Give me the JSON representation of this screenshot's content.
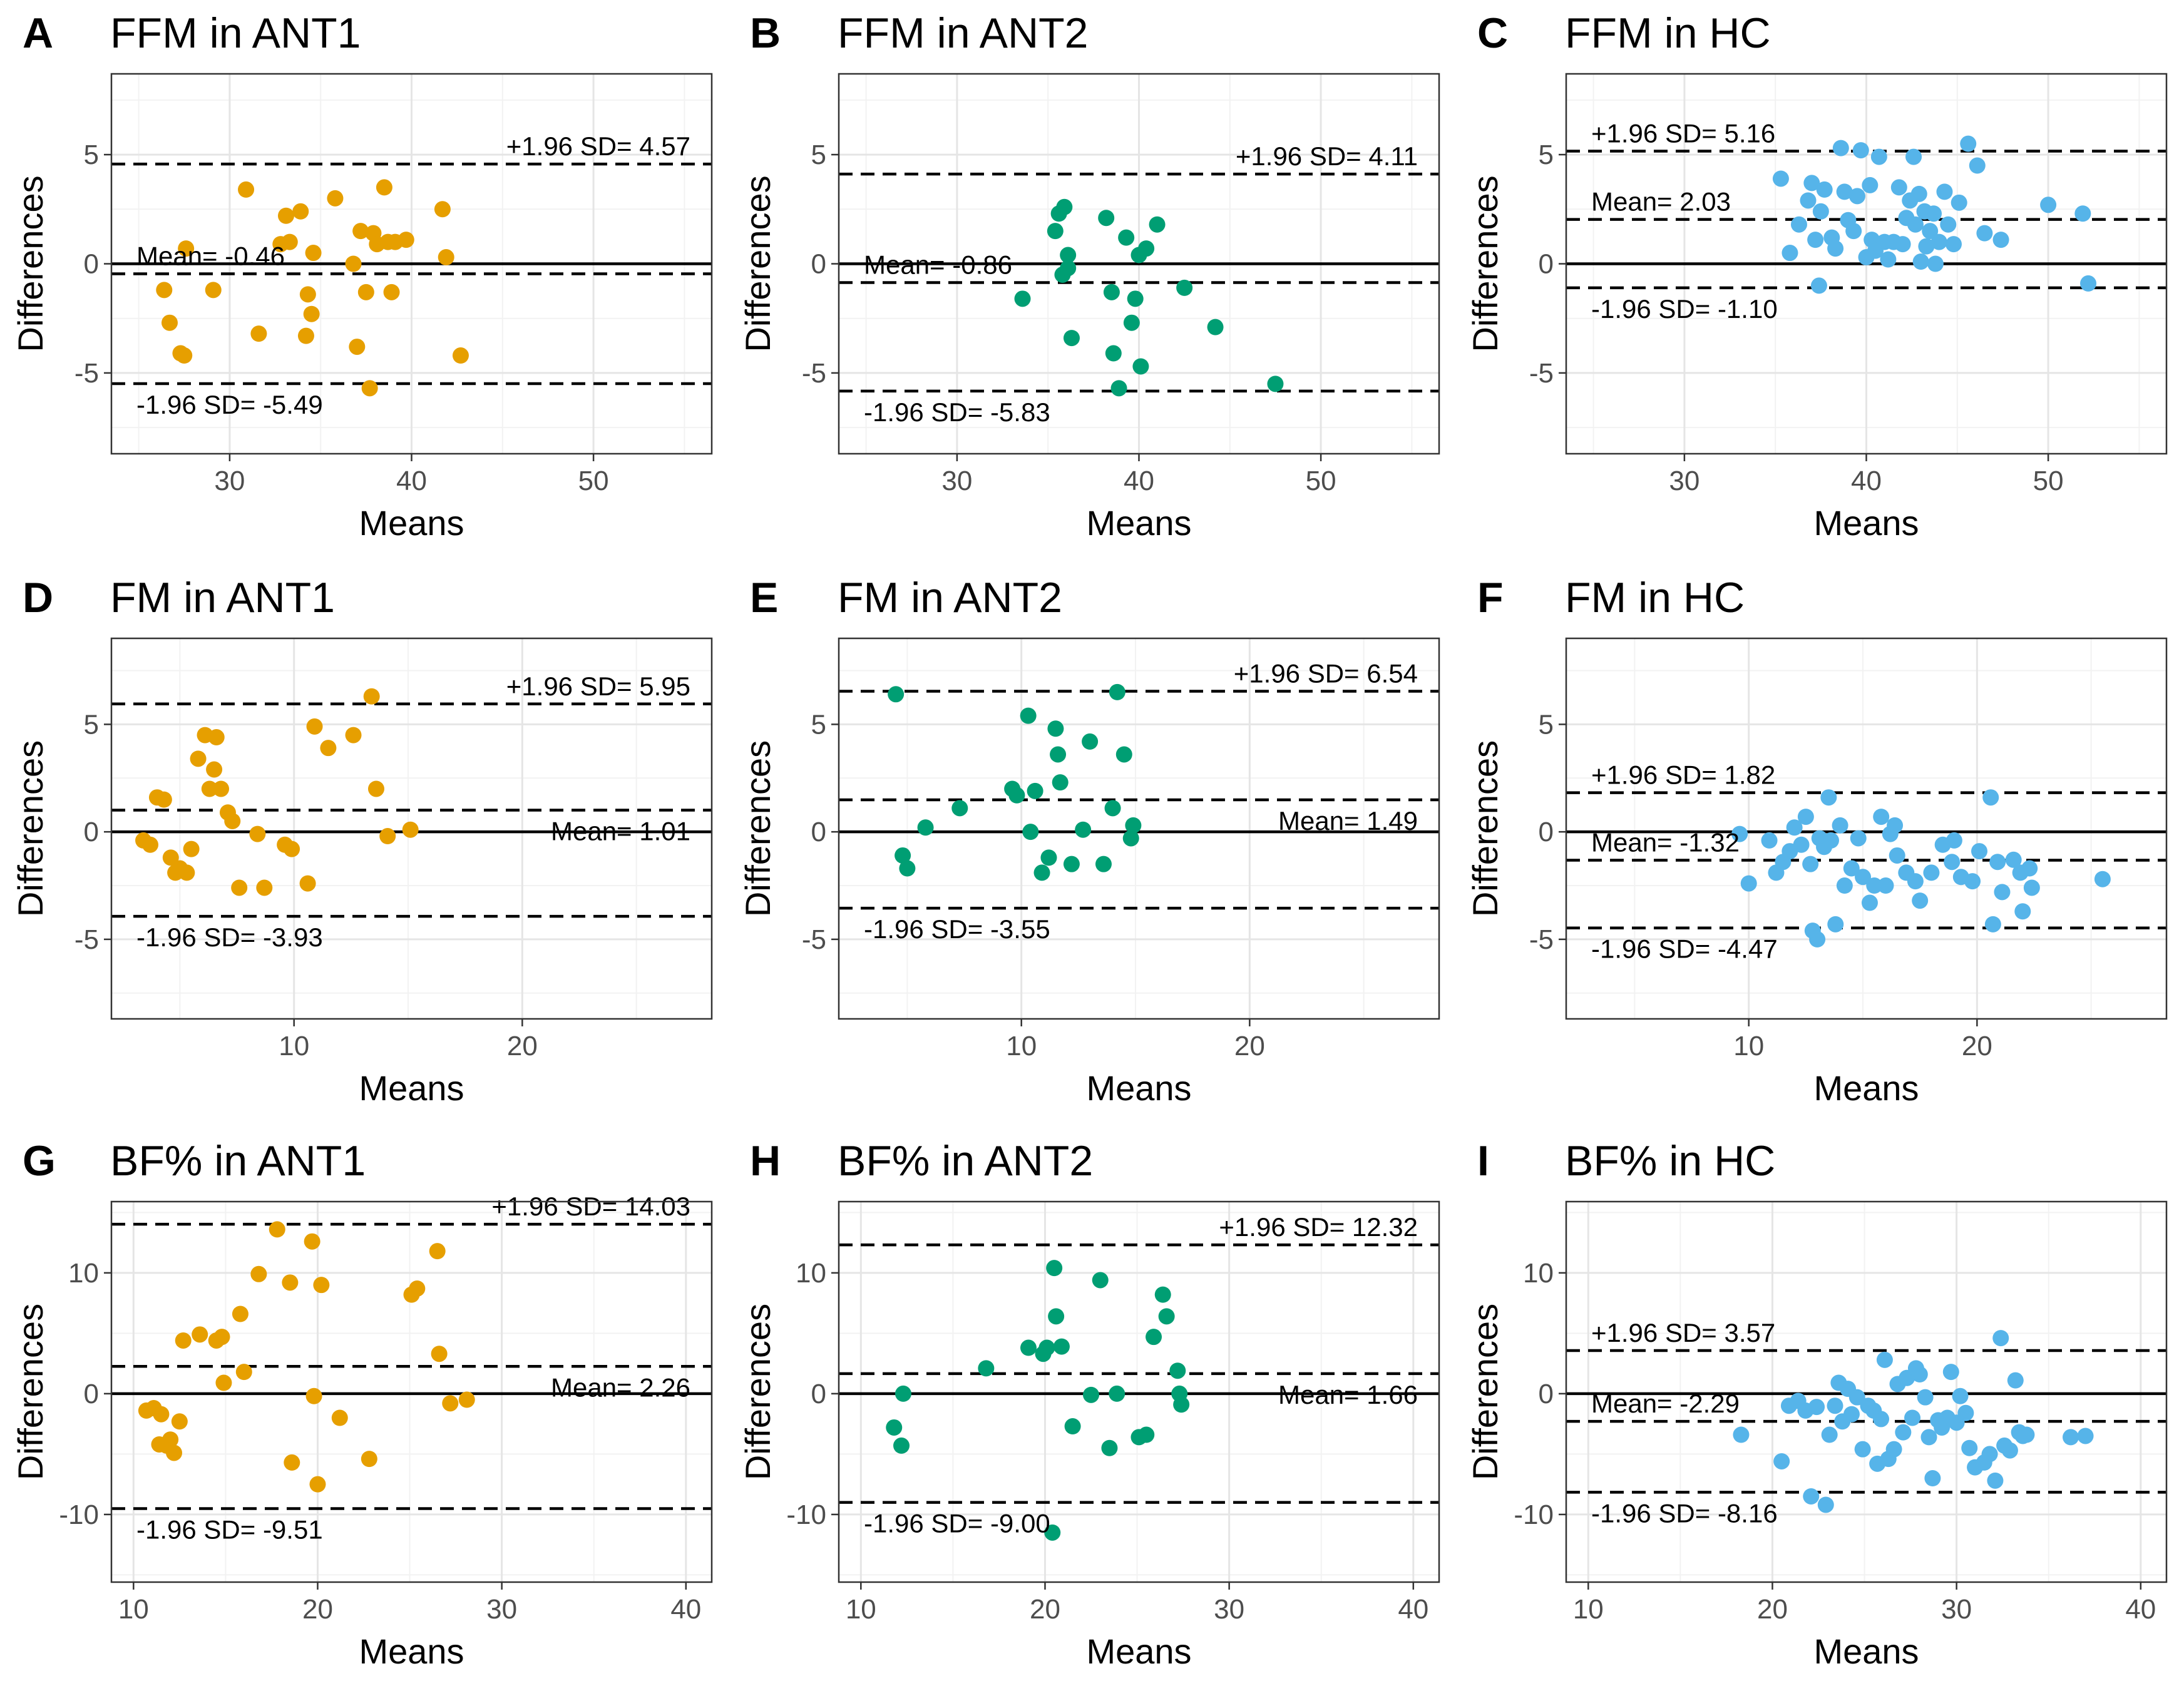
{
  "chart_data": [
    {
      "panel": "A",
      "title": "FFM in ANT1",
      "type": "scatter",
      "color": "#E69F00",
      "xlabel": "Means",
      "ylabel": "Differences",
      "xlim": [
        23.5,
        56.5
      ],
      "ylim": [
        -8.7,
        8.7
      ],
      "xticks": [
        30,
        40,
        50
      ],
      "yticks": [
        -5,
        0,
        5
      ],
      "upper": 4.57,
      "mean": -0.46,
      "lower": -5.49,
      "upper_label": "+1.96 SD= 4.57",
      "mean_label": "Mean= -0.46",
      "lower_label": "-1.96 SD= -5.49",
      "upper_anchor": "high",
      "mean_anchor": "low",
      "lower_anchor": "low",
      "x": [
        26.4,
        26.7,
        27.3,
        27.5,
        27.6,
        29.1,
        30.9,
        31.6,
        32.8,
        33.1,
        33.3,
        33.9,
        34.2,
        34.3,
        34.5,
        34.6,
        35.8,
        36.8,
        37.0,
        37.2,
        37.5,
        37.7,
        37.9,
        38.1,
        38.5,
        38.7,
        38.9,
        39.1,
        39.7,
        41.7,
        41.9,
        42.7
      ],
      "y": [
        -1.2,
        -2.7,
        -4.1,
        -4.2,
        0.7,
        -1.2,
        3.4,
        -3.2,
        0.9,
        2.2,
        1.0,
        2.4,
        -3.3,
        -1.4,
        -2.3,
        0.5,
        3.0,
        0.0,
        -3.8,
        1.5,
        -1.3,
        -5.7,
        1.4,
        0.9,
        3.5,
        1.0,
        -1.3,
        1.0,
        1.1,
        2.5,
        0.3,
        -4.2
      ]
    },
    {
      "panel": "B",
      "title": "FFM in ANT2",
      "type": "scatter",
      "color": "#009E73",
      "xlabel": "Means",
      "ylabel": "Differences",
      "xlim": [
        23.5,
        56.5
      ],
      "ylim": [
        -8.7,
        8.7
      ],
      "xticks": [
        30,
        40,
        50
      ],
      "yticks": [
        -5,
        0,
        5
      ],
      "upper": 4.11,
      "mean": -0.86,
      "lower": -5.83,
      "upper_label": "+1.96 SD= 4.11",
      "mean_label": "Mean= -0.86",
      "lower_label": "-1.96 SD= -5.83",
      "upper_anchor": "high",
      "mean_anchor": "low",
      "lower_anchor": "low",
      "x": [
        33.6,
        35.4,
        35.6,
        35.8,
        35.9,
        36.1,
        36.1,
        36.3,
        38.2,
        38.5,
        38.6,
        38.9,
        39.3,
        39.6,
        39.8,
        40.0,
        40.1,
        40.4,
        41.0,
        42.5,
        44.2,
        47.5
      ],
      "y": [
        -1.6,
        1.5,
        2.3,
        -0.5,
        2.6,
        -0.2,
        0.4,
        -3.4,
        2.1,
        -1.3,
        -4.1,
        -5.7,
        1.2,
        -2.7,
        -1.6,
        0.4,
        -4.7,
        0.7,
        1.8,
        -1.1,
        -2.9,
        -5.5
      ]
    },
    {
      "panel": "C",
      "title": "FFM in HC",
      "type": "scatter",
      "color": "#56B4E9",
      "xlabel": "Means",
      "ylabel": "Differences",
      "xlim": [
        23.5,
        56.5
      ],
      "ylim": [
        -8.7,
        8.7
      ],
      "xticks": [
        30,
        40,
        50
      ],
      "yticks": [
        -5,
        0,
        5
      ],
      "upper": 5.16,
      "mean": 2.03,
      "lower": -1.1,
      "upper_label": "+1.96 SD= 5.16",
      "mean_label": "Mean= 2.03",
      "lower_label": "-1.96 SD= -1.10",
      "upper_anchor": "low",
      "mean_anchor": "low",
      "lower_anchor": "low",
      "x": [
        35.3,
        35.8,
        36.3,
        36.8,
        37.0,
        37.2,
        37.4,
        37.5,
        37.7,
        38.1,
        38.3,
        38.6,
        38.8,
        39.0,
        39.3,
        39.5,
        39.7,
        40.0,
        40.2,
        40.3,
        40.5,
        40.7,
        41.0,
        41.2,
        41.5,
        41.8,
        42.0,
        42.2,
        42.4,
        42.6,
        42.7,
        42.9,
        43.0,
        43.2,
        43.3,
        43.5,
        43.7,
        43.8,
        44.0,
        44.3,
        44.5,
        44.8,
        45.1,
        45.6,
        46.1,
        46.5,
        47.4,
        50.0,
        51.9,
        52.2
      ],
      "y": [
        3.9,
        0.5,
        1.8,
        2.9,
        3.7,
        1.1,
        -1.0,
        2.4,
        3.4,
        1.2,
        0.7,
        5.3,
        3.3,
        2.0,
        1.5,
        3.1,
        5.2,
        0.3,
        3.6,
        1.1,
        0.6,
        4.9,
        1.0,
        0.2,
        1.0,
        3.5,
        0.9,
        2.1,
        2.9,
        4.9,
        1.8,
        3.2,
        0.1,
        2.4,
        0.8,
        1.5,
        2.3,
        0.0,
        1.0,
        3.3,
        1.8,
        0.9,
        2.8,
        5.5,
        4.5,
        1.4,
        1.1,
        2.7,
        2.3,
        -0.9
      ]
    },
    {
      "panel": "D",
      "title": "FM in ANT1",
      "type": "scatter",
      "color": "#E69F00",
      "xlabel": "Means",
      "ylabel": "Differences",
      "xlim": [
        2.0,
        28.3
      ],
      "ylim": [
        -8.7,
        9.0
      ],
      "xticks": [
        10,
        20
      ],
      "yticks": [
        -5,
        0,
        5
      ],
      "upper": 5.95,
      "mean": 1.01,
      "lower": -3.93,
      "upper_label": "+1.96 SD= 5.95",
      "mean_label": "Mean= 1.01",
      "lower_label": "-1.96 SD= -3.93",
      "upper_anchor": "high",
      "mean_anchor": "high",
      "lower_anchor": "low",
      "x": [
        3.4,
        3.7,
        4.0,
        4.3,
        4.6,
        4.8,
        5.0,
        5.3,
        5.5,
        5.8,
        6.1,
        6.3,
        6.5,
        6.6,
        6.8,
        7.1,
        7.3,
        7.6,
        8.4,
        8.7,
        9.6,
        9.9,
        10.6,
        10.9,
        11.5,
        12.6,
        13.4,
        13.6,
        14.1,
        15.1
      ],
      "y": [
        -0.4,
        -0.6,
        1.6,
        1.5,
        -1.2,
        -1.9,
        -1.7,
        -1.9,
        -0.8,
        3.4,
        4.5,
        2.0,
        2.9,
        4.4,
        2.0,
        0.9,
        0.5,
        -2.6,
        -0.1,
        -2.6,
        -0.6,
        -0.8,
        -2.4,
        4.9,
        3.9,
        4.5,
        6.3,
        2.0,
        -0.2,
        0.1
      ]
    },
    {
      "panel": "E",
      "title": "FM in ANT2",
      "type": "scatter",
      "color": "#009E73",
      "xlabel": "Means",
      "ylabel": "Differences",
      "xlim": [
        2.0,
        28.3
      ],
      "ylim": [
        -8.7,
        9.0
      ],
      "xticks": [
        10,
        20
      ],
      "yticks": [
        -5,
        0,
        5
      ],
      "upper": 6.54,
      "mean": 1.49,
      "lower": -3.55,
      "upper_label": "+1.96 SD= 6.54",
      "mean_label": "Mean= 1.49",
      "lower_label": "-1.96 SD= -3.55",
      "upper_anchor": "high",
      "mean_anchor": "high",
      "lower_anchor": "low",
      "x": [
        4.5,
        4.8,
        5.0,
        5.8,
        7.3,
        9.6,
        9.8,
        10.3,
        10.4,
        10.6,
        10.9,
        11.2,
        11.5,
        11.6,
        11.7,
        12.2,
        12.7,
        13.0,
        13.6,
        14.0,
        14.2,
        14.5,
        14.8,
        14.9
      ],
      "y": [
        6.4,
        -1.1,
        -1.7,
        0.2,
        1.1,
        2.0,
        1.7,
        5.4,
        0.0,
        1.9,
        -1.9,
        -1.2,
        4.8,
        3.6,
        2.3,
        -1.5,
        0.1,
        4.2,
        -1.5,
        1.1,
        6.5,
        3.6,
        -0.3,
        0.3
      ]
    },
    {
      "panel": "F",
      "title": "FM in HC",
      "type": "scatter",
      "color": "#56B4E9",
      "xlabel": "Means",
      "ylabel": "Differences",
      "xlim": [
        2.0,
        28.3
      ],
      "ylim": [
        -8.7,
        9.0
      ],
      "xticks": [
        10,
        20
      ],
      "yticks": [
        -5,
        0,
        5
      ],
      "upper": 1.82,
      "mean": -1.32,
      "lower": -4.47,
      "upper_label": "+1.96 SD= 1.82",
      "mean_label": "Mean= -1.32",
      "lower_label": "-1.96 SD= -4.47",
      "upper_anchor": "low",
      "mean_anchor": "low",
      "lower_anchor": "low",
      "x": [
        9.6,
        10.0,
        10.9,
        11.2,
        11.5,
        11.8,
        12.0,
        12.3,
        12.5,
        12.7,
        12.8,
        13.0,
        13.1,
        13.3,
        13.5,
        13.6,
        13.8,
        14.0,
        14.2,
        14.5,
        14.8,
        15.0,
        15.3,
        15.5,
        15.8,
        16.0,
        16.2,
        16.4,
        16.5,
        16.9,
        17.3,
        17.5,
        18.0,
        18.5,
        18.9,
        19.0,
        19.3,
        19.8,
        20.1,
        20.6,
        20.7,
        20.9,
        21.1,
        21.6,
        21.9,
        22.0,
        22.3,
        22.4,
        25.5
      ],
      "y": [
        -0.1,
        -2.4,
        -0.4,
        -1.9,
        -1.4,
        -0.9,
        0.2,
        -0.6,
        0.7,
        -1.5,
        -4.6,
        -5.0,
        -0.3,
        -0.7,
        1.6,
        -0.4,
        -4.3,
        0.3,
        -2.5,
        -1.7,
        -0.3,
        -2.1,
        -3.3,
        -2.5,
        0.7,
        -2.5,
        -0.1,
        0.3,
        -1.1,
        -1.9,
        -2.3,
        -3.2,
        -1.9,
        -0.6,
        -1.4,
        -0.4,
        -2.1,
        -2.3,
        -0.9,
        1.6,
        -4.3,
        -1.4,
        -2.8,
        -1.3,
        -1.9,
        -3.7,
        -1.7,
        -2.6,
        -2.2
      ]
    },
    {
      "panel": "G",
      "title": "BF% in ANT1",
      "type": "scatter",
      "color": "#E69F00",
      "xlabel": "Means",
      "ylabel": "Differences",
      "xlim": [
        8.8,
        41.4
      ],
      "ylim": [
        -15.6,
        15.9
      ],
      "xticks": [
        10,
        20,
        30,
        40
      ],
      "yticks": [
        -10,
        0,
        10
      ],
      "upper": 14.03,
      "mean": 2.26,
      "lower": -9.51,
      "upper_label": "+1.96 SD= 14.03",
      "mean_label": "Mean= 2.26",
      "lower_label": "-1.96 SD= -9.51",
      "upper_anchor": "high",
      "mean_anchor": "high",
      "lower_anchor": "low",
      "x": [
        10.7,
        11.1,
        11.4,
        11.5,
        11.8,
        12.0,
        12.2,
        12.5,
        12.7,
        13.6,
        14.5,
        14.8,
        14.9,
        15.8,
        16.0,
        16.8,
        17.8,
        18.5,
        18.6,
        19.7,
        19.8,
        20.0,
        20.2,
        21.2,
        22.8,
        25.1,
        25.4,
        26.5,
        26.6,
        27.2,
        28.1
      ],
      "y": [
        -1.4,
        -1.2,
        -4.2,
        -1.7,
        -4.3,
        -3.8,
        -4.9,
        -2.3,
        4.4,
        4.9,
        4.4,
        4.7,
        0.9,
        6.6,
        1.8,
        9.9,
        13.6,
        9.2,
        -5.7,
        12.6,
        -0.2,
        -7.5,
        9.0,
        -2.0,
        -5.4,
        8.2,
        8.7,
        11.8,
        3.3,
        -0.8,
        -0.5
      ]
    },
    {
      "panel": "H",
      "title": "BF% in ANT2",
      "type": "scatter",
      "color": "#009E73",
      "xlabel": "Means",
      "ylabel": "Differences",
      "xlim": [
        8.8,
        41.4
      ],
      "ylim": [
        -15.6,
        15.9
      ],
      "xticks": [
        10,
        20,
        30,
        40
      ],
      "yticks": [
        -10,
        0,
        10
      ],
      "upper": 12.32,
      "mean": 1.66,
      "lower": -9.0,
      "upper_label": "+1.96 SD= 12.32",
      "mean_label": "Mean= 1.66",
      "lower_label": "-1.96 SD= -9.00",
      "upper_anchor": "high",
      "mean_anchor": "high",
      "lower_anchor": "low",
      "x": [
        11.8,
        12.2,
        12.3,
        16.8,
        19.1,
        19.9,
        20.1,
        20.4,
        20.5,
        20.6,
        20.9,
        21.5,
        22.5,
        23.0,
        23.5,
        23.9,
        25.1,
        25.5,
        25.9,
        26.4,
        26.6,
        27.2,
        27.3,
        27.4
      ],
      "y": [
        -2.8,
        -4.3,
        0.0,
        2.1,
        3.8,
        3.3,
        3.8,
        -11.5,
        10.4,
        6.4,
        3.9,
        -2.7,
        -0.1,
        9.4,
        -4.5,
        0.0,
        -3.6,
        -3.4,
        4.7,
        8.2,
        6.4,
        1.9,
        0.0,
        -0.9
      ]
    },
    {
      "panel": "I",
      "title": "BF% in HC",
      "type": "scatter",
      "color": "#56B4E9",
      "xlabel": "Means",
      "ylabel": "Differences",
      "xlim": [
        8.8,
        41.4
      ],
      "ylim": [
        -15.6,
        15.9
      ],
      "xticks": [
        10,
        20,
        30,
        40
      ],
      "yticks": [
        -10,
        0,
        10
      ],
      "upper": 3.57,
      "mean": -2.29,
      "lower": -8.16,
      "upper_label": "+1.96 SD= 3.57",
      "mean_label": "Mean= -2.29",
      "lower_label": "-1.96 SD= -8.16",
      "upper_anchor": "low",
      "mean_anchor": "low",
      "lower_anchor": "low",
      "x": [
        18.3,
        20.5,
        20.9,
        21.4,
        21.8,
        22.1,
        22.4,
        22.9,
        23.1,
        23.4,
        23.6,
        23.8,
        24.1,
        24.3,
        24.6,
        24.9,
        25.2,
        25.5,
        25.7,
        25.9,
        26.1,
        26.3,
        26.6,
        26.8,
        27.1,
        27.3,
        27.6,
        27.8,
        28.0,
        28.3,
        28.5,
        28.7,
        29.0,
        29.2,
        29.5,
        29.7,
        30.0,
        30.2,
        30.5,
        30.7,
        31.0,
        31.5,
        31.8,
        32.1,
        32.4,
        32.6,
        32.9,
        33.2,
        33.4,
        33.6,
        33.8,
        36.2,
        37.0
      ],
      "y": [
        -3.4,
        -5.6,
        -1.0,
        -0.6,
        -1.4,
        -8.5,
        -1.1,
        -9.2,
        -3.4,
        -1.0,
        0.9,
        -2.3,
        0.4,
        -1.7,
        -0.3,
        -4.6,
        -1.0,
        -1.4,
        -5.8,
        -2.1,
        2.8,
        -5.4,
        -4.6,
        0.8,
        -3.2,
        1.3,
        -2.0,
        2.1,
        1.6,
        -0.3,
        -3.6,
        -7.0,
        -2.2,
        -2.8,
        -2.0,
        1.8,
        -2.4,
        -0.2,
        -1.6,
        -4.5,
        -6.1,
        -5.7,
        -5.0,
        -7.2,
        4.6,
        -4.3,
        -4.7,
        1.1,
        -3.2,
        -3.5,
        -3.4,
        -3.6,
        -3.5
      ]
    }
  ]
}
